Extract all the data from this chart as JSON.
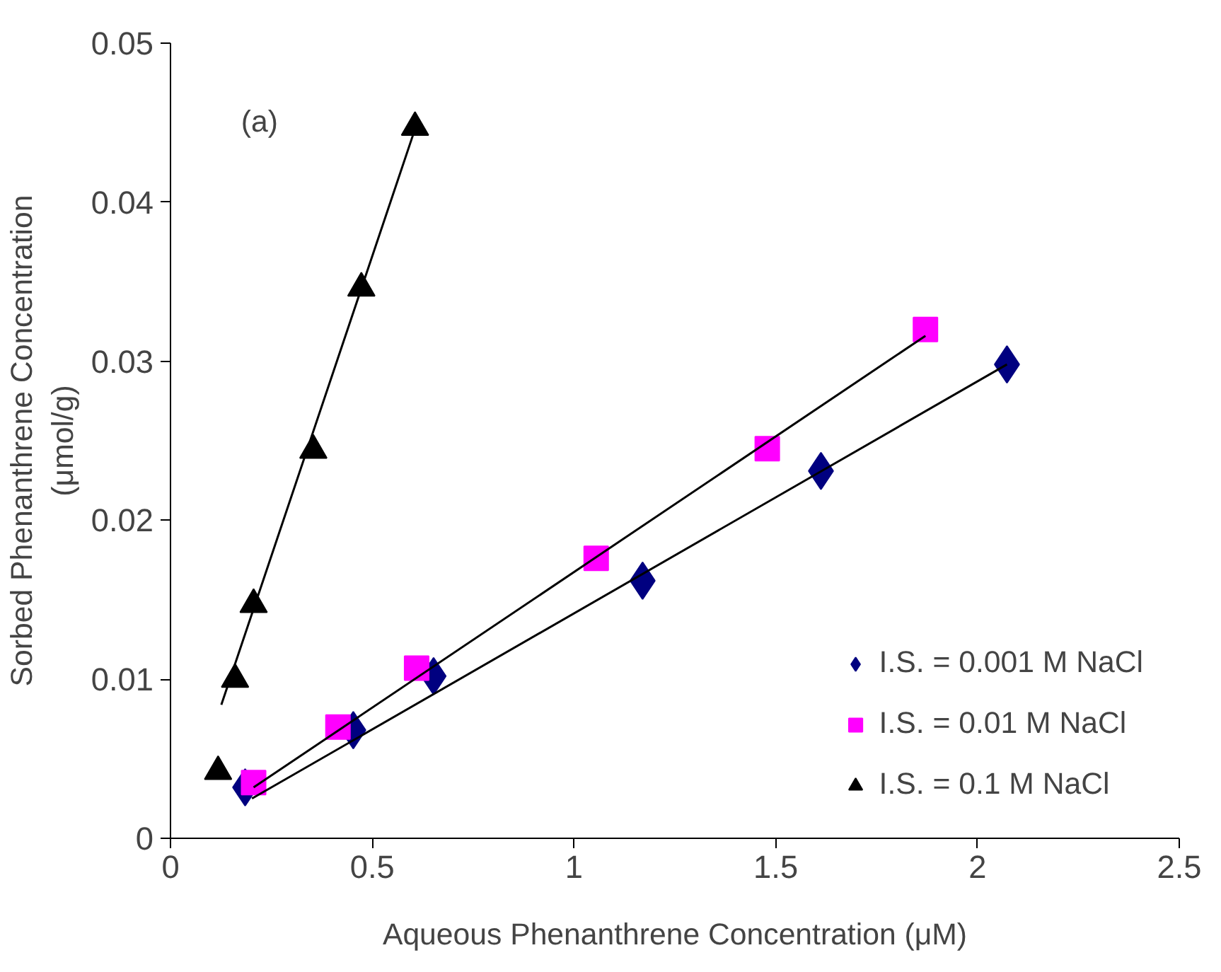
{
  "chart_data": {
    "type": "scatter",
    "xlabel": "Aqueous Phenanthrene Concentration (μM)",
    "ylabel": "Sorbed Phenanthrene Concentration\n(μmol/g)",
    "annotations": [
      "(a)"
    ],
    "xlim": [
      0,
      2.5
    ],
    "xticks": [
      0,
      0.5,
      1,
      1.5,
      2,
      2.5
    ],
    "ylim": [
      0,
      0.05
    ],
    "yticks": [
      0,
      0.01,
      0.02,
      0.03,
      0.04,
      0.05
    ],
    "grid": false,
    "legend": "bottom right",
    "series": [
      {
        "name": "I.S. = 0.001 M NaCl",
        "color": "#000080",
        "marker": "diamond",
        "x": [
          0.185,
          0.453,
          0.652,
          1.17,
          1.612,
          2.073
        ],
        "values": [
          0.0032,
          0.0068,
          0.0102,
          0.0162,
          0.0231,
          0.0298
        ]
      },
      {
        "name": "I.S. = 0.01 M NaCl",
        "color": "#ff00ff",
        "marker": "square",
        "x": [
          0.206,
          0.415,
          0.61,
          1.055,
          1.479,
          1.871
        ],
        "values": [
          0.0035,
          0.007,
          0.0107,
          0.0176,
          0.0245,
          0.032
        ]
      },
      {
        "name": "I.S. = 0.1 M NaCl",
        "color": "#000000",
        "marker": "triangle",
        "x": [
          0.118,
          0.16,
          0.206,
          0.354,
          0.473,
          0.606
        ],
        "values": [
          0.0042,
          0.01,
          0.0147,
          0.0244,
          0.0346,
          0.0447
        ]
      },
      {
        "type": "line",
        "color": "#000000",
        "x": [
          0.202,
          2.073
        ],
        "values": [
          0.0025,
          0.0298
        ]
      },
      {
        "type": "line",
        "color": "#000000",
        "x": [
          0.206,
          1.871
        ],
        "values": [
          0.0032,
          0.0316
        ]
      },
      {
        "type": "line",
        "color": "#000000",
        "x": [
          0.126,
          0.606
        ],
        "values": [
          0.0084,
          0.0446
        ]
      }
    ]
  }
}
